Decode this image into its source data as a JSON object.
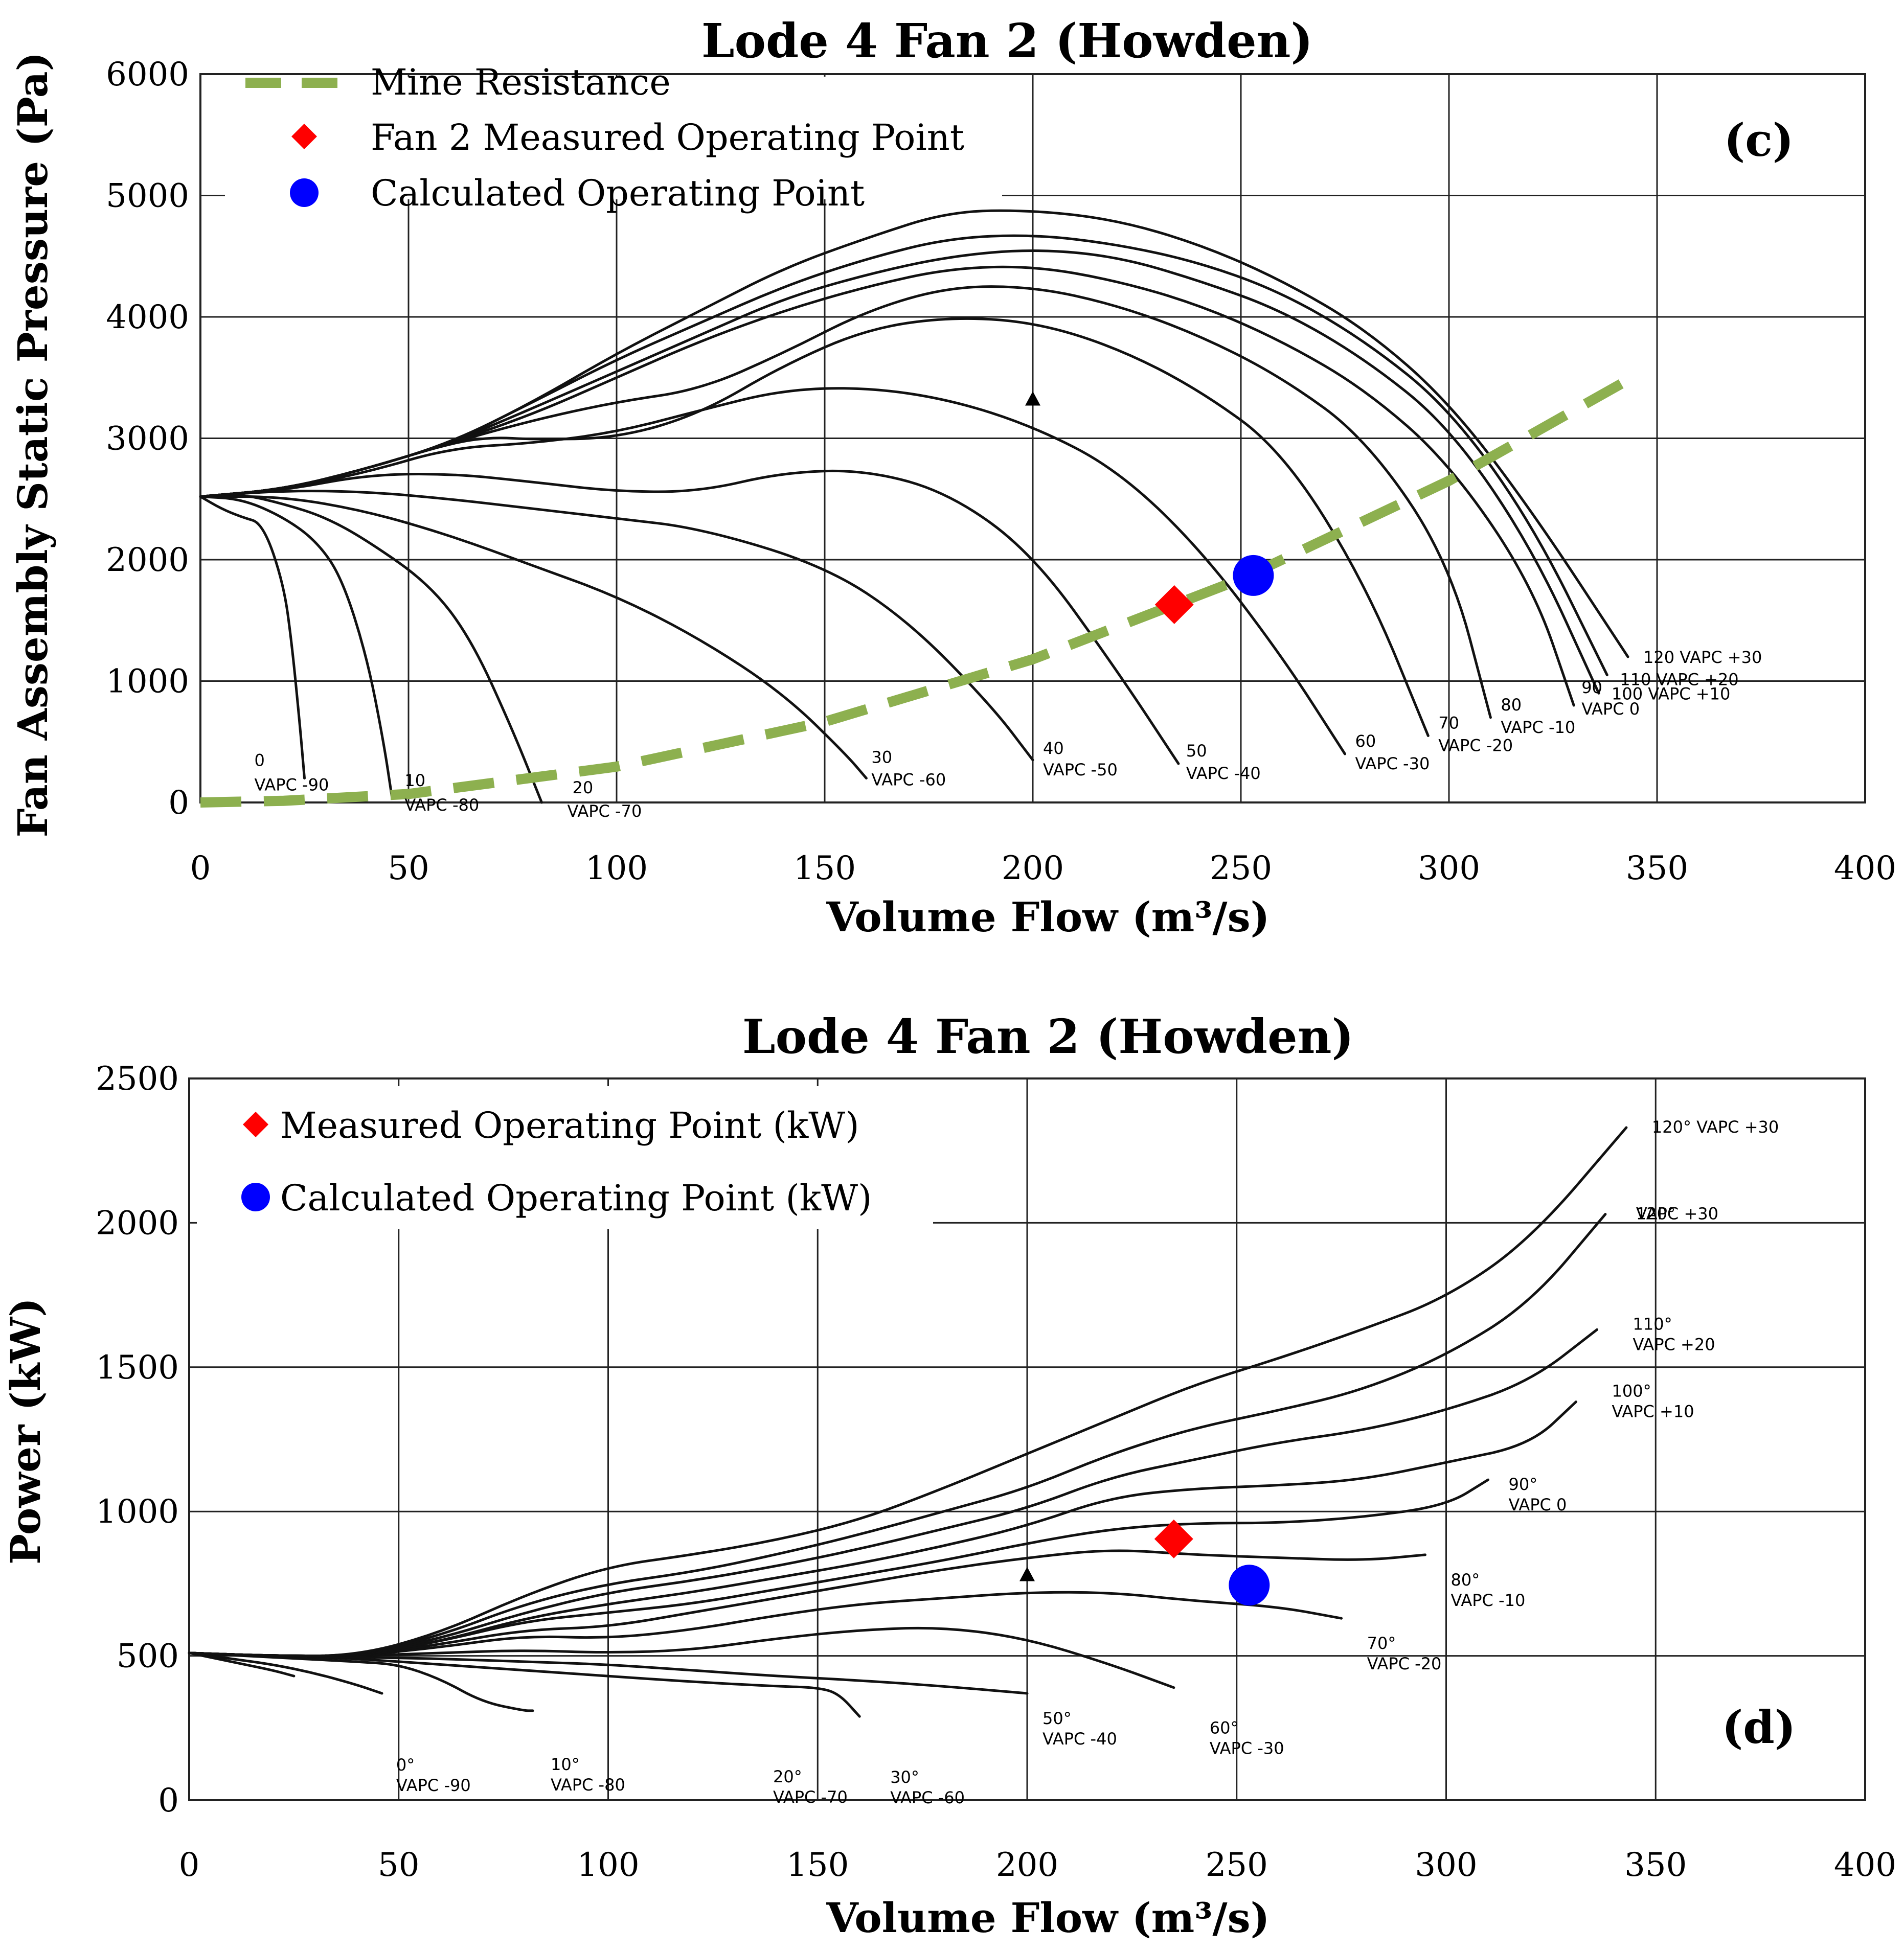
{
  "chart_data": [
    {
      "type": "line",
      "panel": "(c)",
      "title": "Lode 4 Fan 2 (Howden)",
      "xlabel": "Volume Flow (m³/s)",
      "ylabel": "Fan Assembly Static Pressure (Pa)",
      "xlim": [
        0,
        400
      ],
      "ylim": [
        0,
        6000
      ],
      "xticks": [
        0,
        50,
        100,
        150,
        200,
        250,
        300,
        350,
        400
      ],
      "yticks": [
        0,
        1000,
        2000,
        3000,
        4000,
        5000,
        6000
      ],
      "grid": true,
      "legend_position": "top-left",
      "legend": [
        {
          "name": "Mine Resistance",
          "marker": "dashed-line",
          "color": "#8db04f"
        },
        {
          "name": "Fan 2 Measured Operating Point",
          "marker": "diamond",
          "color": "#ff0000"
        },
        {
          "name": "Calculated Operating Point",
          "marker": "circle",
          "color": "#0000ff"
        }
      ],
      "mine_resistance": {
        "x": [
          0,
          20,
          50,
          100,
          150,
          200,
          250,
          300,
          344
        ],
        "y": [
          0,
          14,
          70,
          295,
          665,
          1180,
          1840,
          2650,
          3500
        ]
      },
      "measured_point": {
        "x": 234,
        "y": 1630
      },
      "calculated_point": {
        "x": 253,
        "y": 1870
      },
      "marker_triangle": {
        "x": 200,
        "y": 3320
      },
      "fan_curves": [
        {
          "label": [
            "0",
            "VAPC -90"
          ],
          "x": [
            0,
            5,
            10,
            15,
            20,
            22,
            24,
            25
          ],
          "y": [
            2520,
            2420,
            2350,
            2300,
            1800,
            1300,
            600,
            200
          ]
        },
        {
          "label": [
            "10",
            "VAPC -80"
          ],
          "x": [
            0,
            10,
            20,
            28,
            34,
            40,
            44,
            46
          ],
          "y": [
            2520,
            2500,
            2350,
            2150,
            1850,
            1200,
            500,
            50
          ]
        },
        {
          "label": [
            "20",
            "VAPC -70"
          ],
          "x": [
            0,
            10,
            20,
            30,
            40,
            55,
            65,
            75,
            82
          ],
          "y": [
            2520,
            2540,
            2460,
            2350,
            2160,
            1800,
            1350,
            600,
            0
          ]
        },
        {
          "label": [
            "30",
            "VAPC -60"
          ],
          "x": [
            0,
            20,
            40,
            60,
            80,
            100,
            120,
            140,
            155,
            160
          ],
          "y": [
            2520,
            2520,
            2400,
            2200,
            1950,
            1700,
            1350,
            900,
            400,
            200
          ]
        },
        {
          "label": [
            "40",
            "VAPC -50"
          ],
          "x": [
            0,
            20,
            40,
            60,
            80,
            100,
            120,
            150,
            170,
            190,
            200
          ],
          "y": [
            2520,
            2570,
            2560,
            2500,
            2420,
            2340,
            2260,
            1950,
            1500,
            800,
            350
          ]
        },
        {
          "label": [
            "50",
            "VAPC -40"
          ],
          "x": [
            0,
            20,
            40,
            60,
            80,
            100,
            120,
            140,
            160,
            180,
            200,
            220,
            235
          ],
          "y": [
            2520,
            2570,
            2700,
            2710,
            2640,
            2560,
            2560,
            2720,
            2740,
            2550,
            2050,
            1100,
            320
          ]
        },
        {
          "label": [
            "60",
            "VAPC -30"
          ],
          "x": [
            0,
            20,
            40,
            60,
            80,
            100,
            120,
            140,
            160,
            180,
            200,
            220,
            240,
            260,
            275
          ],
          "y": [
            2520,
            2580,
            2720,
            2920,
            2960,
            3050,
            3230,
            3400,
            3420,
            3320,
            3100,
            2750,
            2100,
            1200,
            400
          ]
        },
        {
          "label": [
            "70",
            "VAPC -20"
          ],
          "x": [
            0,
            20,
            40,
            60,
            70,
            80,
            100,
            120,
            140,
            160,
            180,
            200,
            220,
            240,
            260,
            280,
            295
          ],
          "y": [
            2520,
            2580,
            2750,
            2960,
            3010,
            2990,
            3000,
            3200,
            3600,
            3900,
            4000,
            3960,
            3750,
            3400,
            2900,
            1800,
            550
          ]
        },
        {
          "label": [
            "80",
            "VAPC -10"
          ],
          "x": [
            0,
            20,
            40,
            60,
            80,
            100,
            120,
            140,
            160,
            180,
            200,
            220,
            240,
            260,
            280,
            300,
            310
          ],
          "y": [
            2520,
            2580,
            2750,
            2960,
            3150,
            3300,
            3400,
            3700,
            4050,
            4250,
            4250,
            4100,
            3850,
            3500,
            3000,
            2000,
            700
          ]
        },
        {
          "label": [
            "90",
            "VAPC 0"
          ],
          "x": [
            0,
            20,
            40,
            60,
            80,
            100,
            120,
            140,
            160,
            180,
            200,
            220,
            240,
            260,
            280,
            300,
            320,
            330
          ],
          "y": [
            2520,
            2580,
            2750,
            2960,
            3200,
            3500,
            3800,
            4050,
            4250,
            4400,
            4420,
            4300,
            4100,
            3800,
            3400,
            2800,
            1800,
            800
          ]
        },
        {
          "label": [
            "100 VAPC +10"
          ],
          "x": [
            0,
            20,
            40,
            60,
            80,
            100,
            120,
            140,
            160,
            180,
            200,
            220,
            240,
            260,
            280,
            300,
            320,
            336
          ],
          "y": [
            2520,
            2580,
            2750,
            2960,
            3250,
            3550,
            3850,
            4150,
            4350,
            4500,
            4560,
            4500,
            4300,
            4050,
            3650,
            3100,
            2100,
            900
          ]
        },
        {
          "label": [
            "110 VAPC +20"
          ],
          "x": [
            0,
            20,
            40,
            60,
            80,
            100,
            120,
            140,
            160,
            180,
            200,
            220,
            240,
            260,
            280,
            300,
            320,
            338
          ],
          "y": [
            2520,
            2580,
            2750,
            2960,
            3300,
            3650,
            3950,
            4250,
            4480,
            4650,
            4680,
            4600,
            4450,
            4200,
            3800,
            3250,
            2300,
            1050
          ]
        },
        {
          "label": [
            "120 VAPC +30"
          ],
          "x": [
            0,
            20,
            40,
            60,
            80,
            100,
            120,
            140,
            160,
            180,
            200,
            220,
            240,
            260,
            280,
            300,
            320,
            343
          ],
          "y": [
            2520,
            2580,
            2750,
            2960,
            3300,
            3700,
            4050,
            4400,
            4650,
            4870,
            4880,
            4800,
            4600,
            4300,
            3900,
            3300,
            2400,
            1200
          ]
        }
      ]
    },
    {
      "type": "line",
      "panel": "(d)",
      "title": "Lode 4 Fan 2 (Howden)",
      "xlabel": "Volume Flow (m³/s)",
      "ylabel": "Power (kW)",
      "xlim": [
        0,
        400
      ],
      "ylim": [
        0,
        2500
      ],
      "xticks": [
        0,
        50,
        100,
        150,
        200,
        250,
        300,
        350,
        400
      ],
      "yticks": [
        0,
        500,
        1000,
        1500,
        2000,
        2500
      ],
      "grid": true,
      "legend_position": "top-left",
      "legend": [
        {
          "name": "Measured Operating Point (kW)",
          "marker": "diamond",
          "color": "#ff0000"
        },
        {
          "name": "Calculated Operating Point (kW)",
          "marker": "circle",
          "color": "#0000ff"
        }
      ],
      "measured_point": {
        "x": 235,
        "y": 905
      },
      "calculated_point": {
        "x": 253,
        "y": 745
      },
      "marker_triangle": {
        "x": 200,
        "y": 780
      },
      "power_curves": [
        {
          "label": [
            "0°",
            "VAPC -90"
          ],
          "x": [
            0,
            10,
            20,
            25
          ],
          "y": [
            510,
            480,
            450,
            430
          ]
        },
        {
          "label": [
            "10°",
            "VAPC -80"
          ],
          "x": [
            0,
            10,
            20,
            30,
            40,
            46
          ],
          "y": [
            510,
            490,
            470,
            440,
            400,
            370
          ]
        },
        {
          "label": [
            "20°",
            "VAPC -70"
          ],
          "x": [
            0,
            20,
            40,
            50,
            60,
            70,
            80,
            82
          ],
          "y": [
            510,
            495,
            480,
            470,
            420,
            340,
            310,
            310
          ]
        },
        {
          "label": [
            "30°",
            "VAPC -60"
          ],
          "x": [
            0,
            20,
            40,
            60,
            80,
            100,
            120,
            140,
            150,
            155,
            160
          ],
          "y": [
            510,
            500,
            490,
            470,
            450,
            430,
            410,
            395,
            390,
            370,
            290
          ]
        },
        {
          "label": [
            "50°",
            "VAPC -40"
          ],
          "x": [
            0,
            20,
            40,
            60,
            80,
            100,
            120,
            140,
            160,
            180,
            200
          ],
          "y": [
            510,
            500,
            495,
            490,
            480,
            470,
            450,
            430,
            415,
            395,
            370
          ]
        },
        {
          "label": [
            "60°",
            "VAPC -30"
          ],
          "x": [
            0,
            20,
            40,
            60,
            80,
            100,
            120,
            140,
            160,
            180,
            200,
            220,
            235
          ],
          "y": [
            510,
            500,
            500,
            510,
            520,
            510,
            520,
            560,
            590,
            600,
            560,
            470,
            390
          ]
        },
        {
          "label": [
            "70°",
            "VAPC -20"
          ],
          "x": [
            0,
            20,
            40,
            60,
            80,
            100,
            120,
            140,
            160,
            180,
            200,
            220,
            240,
            260,
            275
          ],
          "y": [
            510,
            500,
            500,
            530,
            570,
            560,
            590,
            640,
            680,
            700,
            720,
            720,
            690,
            670,
            630
          ]
        },
        {
          "label": [
            "80°",
            "VAPC -10"
          ],
          "x": [
            0,
            20,
            40,
            60,
            80,
            100,
            120,
            140,
            160,
            180,
            200,
            220,
            240,
            260,
            280,
            295
          ],
          "y": [
            510,
            500,
            500,
            540,
            590,
            600,
            650,
            700,
            750,
            800,
            840,
            870,
            850,
            840,
            830,
            850
          ]
        },
        {
          "label": [
            "90°",
            "VAPC 0"
          ],
          "x": [
            0,
            20,
            40,
            60,
            80,
            100,
            120,
            140,
            160,
            180,
            200,
            220,
            240,
            260,
            280,
            300,
            310
          ],
          "y": [
            510,
            500,
            500,
            550,
            620,
            650,
            680,
            730,
            780,
            830,
            890,
            940,
            960,
            960,
            980,
            1020,
            1110
          ]
        },
        {
          "label": [
            "100°",
            "VAPC +10"
          ],
          "x": [
            0,
            20,
            40,
            60,
            80,
            100,
            120,
            140,
            160,
            180,
            200,
            220,
            240,
            260,
            280,
            300,
            320,
            331
          ],
          "y": [
            510,
            500,
            500,
            550,
            630,
            680,
            720,
            770,
            820,
            880,
            950,
            1050,
            1080,
            1090,
            1110,
            1170,
            1230,
            1380
          ]
        },
        {
          "label": [
            "110°",
            "VAPC +20"
          ],
          "x": [
            0,
            20,
            40,
            60,
            80,
            100,
            120,
            140,
            160,
            180,
            200,
            220,
            240,
            260,
            280,
            300,
            320,
            336
          ],
          "y": [
            510,
            500,
            500,
            560,
            650,
            720,
            760,
            810,
            870,
            940,
            1010,
            1120,
            1180,
            1240,
            1280,
            1350,
            1450,
            1630
          ]
        },
        {
          "label": [
            "120°",
            "VAPC +30"
          ],
          "x": [
            0,
            20,
            40,
            60,
            80,
            100,
            120,
            140,
            160,
            180,
            200,
            220,
            240,
            260,
            280,
            300,
            320,
            338
          ],
          "y": [
            510,
            500,
            500,
            570,
            680,
            750,
            790,
            850,
            920,
            1000,
            1080,
            1200,
            1290,
            1350,
            1420,
            1540,
            1720,
            2030
          ]
        },
        {
          "label": [
            "120° VAPC +30"
          ],
          "x": [
            0,
            20,
            40,
            60,
            80,
            100,
            120,
            140,
            160,
            180,
            200,
            220,
            240,
            260,
            280,
            300,
            320,
            343
          ],
          "y": [
            510,
            500,
            500,
            580,
            710,
            810,
            850,
            900,
            970,
            1080,
            1200,
            1320,
            1440,
            1530,
            1630,
            1740,
            1940,
            2330
          ]
        }
      ]
    }
  ]
}
